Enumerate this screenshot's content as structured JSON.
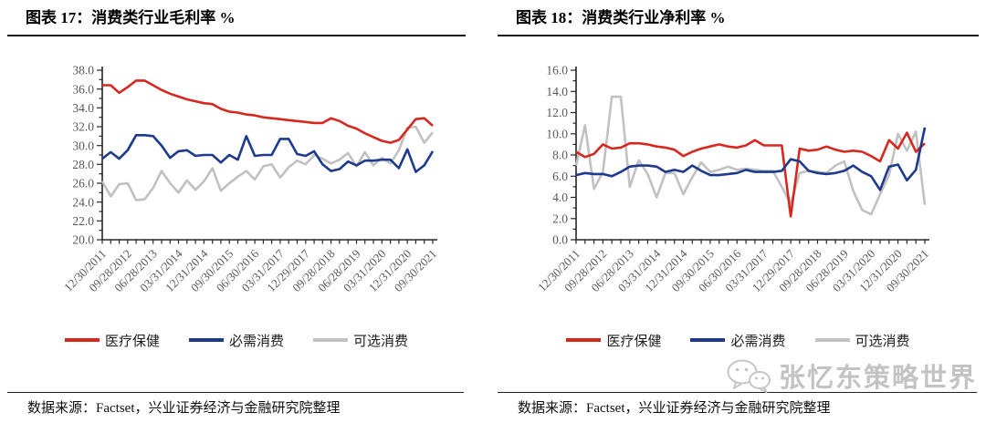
{
  "panels": [
    {
      "source": "数据来源：Factset，兴业证券经济与金融研究院整理"
    },
    {
      "source": "数据来源：Factset，兴业证券经济与金融研究院整理"
    }
  ],
  "watermark": {
    "text": "张忆东策略世界",
    "icon": "wechat-icon",
    "color": "#c3c3c3"
  },
  "axis_colors": {
    "axis_line": "#262626",
    "tick_labels": "#595959"
  },
  "chart_data": [
    {
      "type": "line",
      "title": "图表 17：消费类行业毛利率 %",
      "ylim": [
        20,
        38
      ],
      "ytick_step": 2,
      "ytick_minor_step": 1,
      "ytick_format_decimals": 1,
      "n_points": 40,
      "x_label_every": 3,
      "x_labels": [
        "12/30/2011",
        "09/28/2012",
        "06/28/2013",
        "03/31/2014",
        "12/31/2014",
        "09/30/2015",
        "06/30/2016",
        "03/31/2017",
        "12/29/2017",
        "09/28/2018",
        "06/28/2019",
        "03/31/2020",
        "12/31/2020",
        "09/30/2021"
      ],
      "grid": false,
      "legend_position": "bottom",
      "series": [
        {
          "name": "医疗保健",
          "color": "#d7281f",
          "values": [
            36.4,
            36.4,
            35.6,
            36.2,
            36.9,
            36.9,
            36.4,
            35.9,
            35.5,
            35.2,
            34.9,
            34.7,
            34.5,
            34.4,
            33.9,
            33.6,
            33.5,
            33.3,
            33.2,
            33.0,
            32.9,
            32.8,
            32.7,
            32.6,
            32.5,
            32.4,
            32.4,
            32.9,
            32.6,
            32.1,
            31.8,
            31.3,
            30.9,
            30.5,
            30.3,
            30.6,
            31.7,
            32.8,
            32.9,
            32.1
          ]
        },
        {
          "name": "必需消费",
          "color": "#1e3a8e",
          "values": [
            28.6,
            29.3,
            28.6,
            29.5,
            31.1,
            31.1,
            31.0,
            30.0,
            28.7,
            29.4,
            29.5,
            28.9,
            29.0,
            29.0,
            28.2,
            29.0,
            28.5,
            31.0,
            28.9,
            29.0,
            29.0,
            30.7,
            30.7,
            29.1,
            28.9,
            29.4,
            28.0,
            27.3,
            27.5,
            28.3,
            27.9,
            28.4,
            28.4,
            28.5,
            28.5,
            27.6,
            29.6,
            27.2,
            27.9,
            29.4
          ]
        },
        {
          "name": "可选消费",
          "color": "#c1c1c1",
          "values": [
            26.2,
            24.6,
            25.9,
            26.0,
            24.2,
            24.3,
            25.5,
            27.3,
            26.0,
            25.0,
            26.3,
            25.3,
            26.2,
            27.6,
            25.2,
            26.0,
            26.7,
            27.3,
            26.4,
            27.8,
            28.0,
            26.6,
            27.7,
            28.4,
            28.0,
            29.0,
            28.6,
            28.1,
            28.5,
            29.2,
            27.8,
            29.3,
            27.9,
            28.7,
            28.1,
            29.5,
            31.9,
            32.0,
            30.3,
            31.4
          ]
        }
      ]
    },
    {
      "type": "line",
      "title": "图表 18：消费类行业净利率 %",
      "ylim": [
        0,
        16
      ],
      "ytick_step": 2,
      "ytick_minor_step": 1,
      "ytick_format_decimals": 1,
      "n_points": 40,
      "x_label_every": 3,
      "x_labels": [
        "12/30/2011",
        "09/28/2012",
        "06/28/2013",
        "03/31/2014",
        "12/31/2014",
        "09/30/2015",
        "06/30/2016",
        "03/31/2017",
        "12/29/2017",
        "09/28/2018",
        "06/28/2019",
        "03/31/2020",
        "12/31/2020",
        "09/30/2021"
      ],
      "grid": false,
      "legend_position": "bottom",
      "series": [
        {
          "name": "医疗保健",
          "color": "#d7281f",
          "values": [
            8.3,
            7.8,
            8.1,
            9.0,
            8.6,
            8.7,
            9.1,
            9.1,
            9.0,
            8.8,
            8.7,
            8.5,
            7.9,
            8.3,
            8.6,
            8.8,
            9.0,
            8.8,
            8.7,
            8.9,
            9.4,
            8.9,
            8.9,
            8.9,
            2.2,
            8.6,
            8.4,
            8.5,
            8.8,
            8.5,
            8.3,
            8.4,
            8.3,
            7.9,
            7.4,
            9.4,
            8.6,
            10.1,
            8.3,
            9.1
          ]
        },
        {
          "name": "必需消费",
          "color": "#1e3a8e",
          "values": [
            6.1,
            6.3,
            6.2,
            6.2,
            6.0,
            6.4,
            6.9,
            7.0,
            7.0,
            6.9,
            6.4,
            6.6,
            6.4,
            7.0,
            6.5,
            6.1,
            6.1,
            6.2,
            6.3,
            6.6,
            6.4,
            6.4,
            6.4,
            6.5,
            7.6,
            7.4,
            6.5,
            6.3,
            6.2,
            6.3,
            6.5,
            7.0,
            6.4,
            6.0,
            4.7,
            6.9,
            7.1,
            5.6,
            6.6,
            10.6
          ]
        },
        {
          "name": "可选消费",
          "color": "#c1c1c1",
          "values": [
            7.0,
            10.8,
            4.8,
            6.4,
            13.5,
            13.5,
            5.0,
            7.5,
            6.2,
            4.0,
            6.3,
            6.3,
            4.3,
            5.9,
            7.3,
            6.4,
            6.6,
            6.9,
            6.6,
            6.7,
            6.6,
            6.5,
            6.5,
            5.0,
            3.4,
            6.3,
            6.5,
            6.4,
            6.3,
            7.0,
            7.4,
            4.6,
            2.8,
            2.4,
            4.3,
            6.1,
            10.0,
            8.4,
            10.2,
            3.3
          ]
        }
      ]
    }
  ]
}
